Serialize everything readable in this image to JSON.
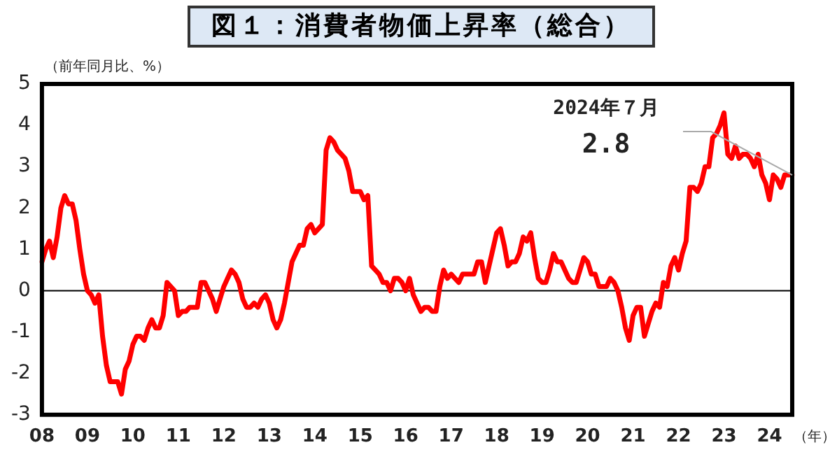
{
  "chart_data": {
    "type": "line",
    "title": "図１：消費者物価上昇率（総合）",
    "ylabel": "（前年同月比、%）",
    "xlabel": "（年）",
    "categories": [
      "08",
      null,
      null,
      null,
      null,
      null,
      null,
      null,
      null,
      null,
      null,
      null,
      "09",
      null,
      null,
      null,
      null,
      null,
      null,
      null,
      null,
      null,
      null,
      null,
      "10",
      null,
      null,
      null,
      null,
      null,
      null,
      null,
      null,
      null,
      null,
      null,
      "11",
      null,
      null,
      null,
      null,
      null,
      null,
      null,
      null,
      null,
      null,
      null,
      "12",
      null,
      null,
      null,
      null,
      null,
      null,
      null,
      null,
      null,
      null,
      null,
      "13",
      null,
      null,
      null,
      null,
      null,
      null,
      null,
      null,
      null,
      null,
      null,
      "14",
      null,
      null,
      null,
      null,
      null,
      null,
      null,
      null,
      null,
      null,
      null,
      "15",
      null,
      null,
      null,
      null,
      null,
      null,
      null,
      null,
      null,
      null,
      null,
      "16",
      null,
      null,
      null,
      null,
      null,
      null,
      null,
      null,
      null,
      null,
      null,
      "17",
      null,
      null,
      null,
      null,
      null,
      null,
      null,
      null,
      null,
      null,
      null,
      "18",
      null,
      null,
      null,
      null,
      null,
      null,
      null,
      null,
      null,
      null,
      null,
      "19",
      null,
      null,
      null,
      null,
      null,
      null,
      null,
      null,
      null,
      null,
      null,
      "20",
      null,
      null,
      null,
      null,
      null,
      null,
      null,
      null,
      null,
      null,
      null,
      "21",
      null,
      null,
      null,
      null,
      null,
      null,
      null,
      null,
      null,
      null,
      null,
      "22",
      null,
      null,
      null,
      null,
      null,
      null,
      null,
      null,
      null,
      null,
      null,
      "23",
      null,
      null,
      null,
      null,
      null,
      null,
      null,
      null,
      null,
      null,
      null,
      "24",
      null,
      null,
      null,
      null,
      null,
      null
    ],
    "series": [
      {
        "color": "#ff0000",
        "values": [
          0.7,
          1.0,
          1.2,
          0.8,
          1.3,
          2.0,
          2.3,
          2.1,
          2.1,
          1.7,
          1.0,
          0.4,
          0.0,
          -0.1,
          -0.3,
          -0.1,
          -1.1,
          -1.8,
          -2.2,
          -2.2,
          -2.2,
          -2.5,
          -1.9,
          -1.7,
          -1.3,
          -1.1,
          -1.1,
          -1.2,
          -0.9,
          -0.7,
          -0.9,
          -0.9,
          -0.6,
          0.2,
          0.1,
          0.0,
          -0.6,
          -0.5,
          -0.5,
          -0.4,
          -0.4,
          -0.4,
          0.2,
          0.2,
          0.0,
          -0.2,
          -0.5,
          -0.2,
          0.1,
          0.3,
          0.5,
          0.4,
          0.2,
          -0.2,
          -0.4,
          -0.4,
          -0.3,
          -0.4,
          -0.2,
          -0.1,
          -0.3,
          -0.7,
          -0.9,
          -0.7,
          -0.3,
          0.2,
          0.7,
          0.9,
          1.1,
          1.1,
          1.5,
          1.6,
          1.4,
          1.5,
          1.6,
          3.4,
          3.7,
          3.6,
          3.4,
          3.3,
          3.2,
          2.9,
          2.4,
          2.4,
          2.4,
          2.2,
          2.3,
          0.6,
          0.5,
          0.4,
          0.2,
          0.2,
          0.0,
          0.3,
          0.3,
          0.2,
          0.0,
          0.3,
          -0.1,
          -0.3,
          -0.5,
          -0.4,
          -0.4,
          -0.5,
          -0.5,
          0.1,
          0.5,
          0.3,
          0.4,
          0.3,
          0.2,
          0.4,
          0.4,
          0.4,
          0.4,
          0.7,
          0.7,
          0.2,
          0.6,
          1.0,
          1.4,
          1.5,
          1.1,
          0.6,
          0.7,
          0.7,
          0.9,
          1.3,
          1.2,
          1.4,
          0.8,
          0.3,
          0.2,
          0.2,
          0.5,
          0.9,
          0.7,
          0.7,
          0.5,
          0.3,
          0.2,
          0.2,
          0.5,
          0.8,
          0.7,
          0.4,
          0.4,
          0.1,
          0.1,
          0.1,
          0.3,
          0.2,
          0.0,
          -0.4,
          -0.9,
          -1.2,
          -0.6,
          -0.4,
          -0.4,
          -1.1,
          -0.8,
          -0.5,
          -0.3,
          -0.4,
          0.2,
          0.1,
          0.6,
          0.8,
          0.5,
          0.9,
          1.2,
          2.5,
          2.5,
          2.4,
          2.6,
          3.0,
          3.0,
          3.7,
          3.8,
          4.0,
          4.3,
          3.3,
          3.2,
          3.5,
          3.2,
          3.3,
          3.3,
          3.2,
          3.0,
          3.3,
          2.8,
          2.6,
          2.2,
          2.8,
          2.7,
          2.5,
          2.8,
          2.8,
          2.8
        ]
      }
    ],
    "ylim": [
      -3,
      5
    ],
    "yticks": [
      -3,
      -2,
      -1,
      0,
      1,
      2,
      3,
      4,
      5
    ],
    "grid": false,
    "legend": false,
    "marker": "none",
    "line_style": "solid",
    "ref_lines": [
      {
        "axis": "y",
        "value": 0,
        "color": "#000000"
      }
    ],
    "annotations": [
      "2024年７月",
      "2.8"
    ]
  }
}
